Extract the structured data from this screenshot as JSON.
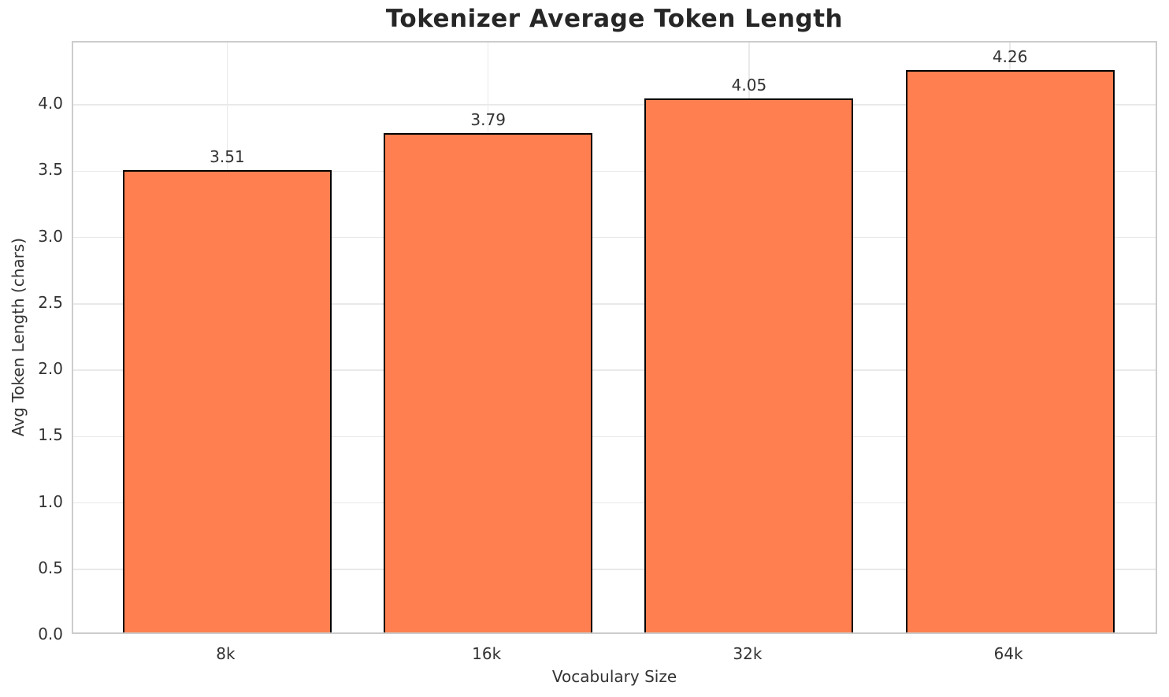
{
  "chart_data": {
    "type": "bar",
    "title": "Tokenizer Average Token Length",
    "xlabel": "Vocabulary Size",
    "ylabel": "Avg Token Length (chars)",
    "categories": [
      "8k",
      "16k",
      "32k",
      "64k"
    ],
    "values": [
      3.51,
      3.79,
      4.05,
      4.26
    ],
    "value_labels": [
      "3.51",
      "3.79",
      "4.05",
      "4.26"
    ],
    "yticks": [
      0.0,
      0.5,
      1.0,
      1.5,
      2.0,
      2.5,
      3.0,
      3.5,
      4.0
    ],
    "ylim": [
      0,
      4.47
    ],
    "xlim": [
      -0.59,
      3.57
    ],
    "bar_width_units": 0.8,
    "grid": true,
    "legend_position": "none",
    "bar_color": "#FF7F50",
    "bar_edge_color": "#000000",
    "grid_color": "#e9e9e9",
    "spine_color": "#cccccc",
    "title_color": "#262626",
    "text_color": "#333333",
    "background_color": "#ffffff"
  }
}
